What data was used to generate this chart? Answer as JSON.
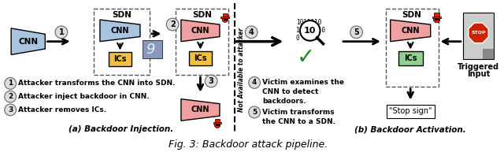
{
  "title": "Fig. 3: Backdoor attack pipeline.",
  "title_fontsize": 9,
  "background_color": "#ffffff",
  "fig_width": 6.4,
  "fig_height": 1.98,
  "caption_a": "(a) Backdoor Injection.",
  "caption_b": "(b) Backdoor Activation.",
  "not_available_text": "Not Available to attacker",
  "ann1": "Attacker transforms the CNN into SDN.",
  "ann2": "Attacker inject backdoor in CNN.",
  "ann3": "Attacker removes ICs.",
  "ann4_line1": "Victim examines the",
  "ann4_line2": "CNN to detect",
  "ann4_line3": "backdoors.",
  "ann5_line1": "Victim transforms",
  "ann5_line2": "the CNN to a SDN.",
  "cnn_blue": "#a8c4e0",
  "cnn_pink": "#f0a0a0",
  "ics_yellow": "#f0c040",
  "ics_green": "#90d090",
  "stop_sign_text": "\"Stop sign\""
}
